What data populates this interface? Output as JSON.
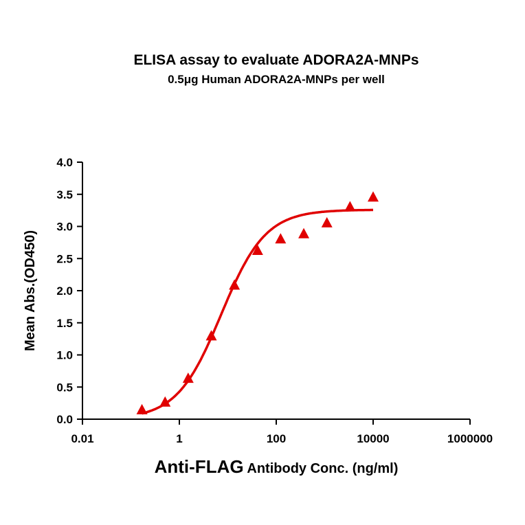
{
  "chart_data": {
    "type": "scatter",
    "title": "ELISA assay to evaluate ADORA2A-MNPs",
    "subtitle": "0.5μg Human ADORA2A-MNPs per well",
    "xlabel_main": "Anti-FLAG",
    "xlabel_rest": " Antibody Conc. (ng/ml)",
    "ylabel": "Mean Abs.(OD450)",
    "xscale": "log",
    "xlim": [
      0.01,
      1000000
    ],
    "ylim": [
      0,
      4.0
    ],
    "xticks": [
      "0.01",
      "1",
      "100",
      "10000",
      "1000000"
    ],
    "xtick_values": [
      0.01,
      1,
      100,
      10000,
      1000000
    ],
    "yticks": [
      "0.0",
      "0.5",
      "1.0",
      "1.5",
      "2.0",
      "2.5",
      "3.0",
      "3.5",
      "4.0"
    ],
    "grid": false,
    "color": "#e00000",
    "marker": "triangle",
    "points": {
      "x": [
        0.169,
        0.508,
        1.52,
        4.57,
        13.7,
        41.2,
        123,
        370,
        1111,
        3333,
        10000
      ],
      "y": [
        0.14,
        0.26,
        0.63,
        1.29,
        2.08,
        2.62,
        2.8,
        2.88,
        3.05,
        3.3,
        3.45
      ]
    },
    "fit": {
      "model": "4PL",
      "bottom": 0.0,
      "top": 3.26,
      "ec50": 7.3,
      "hill": 0.95,
      "xrange": [
        0.169,
        10000
      ]
    }
  }
}
